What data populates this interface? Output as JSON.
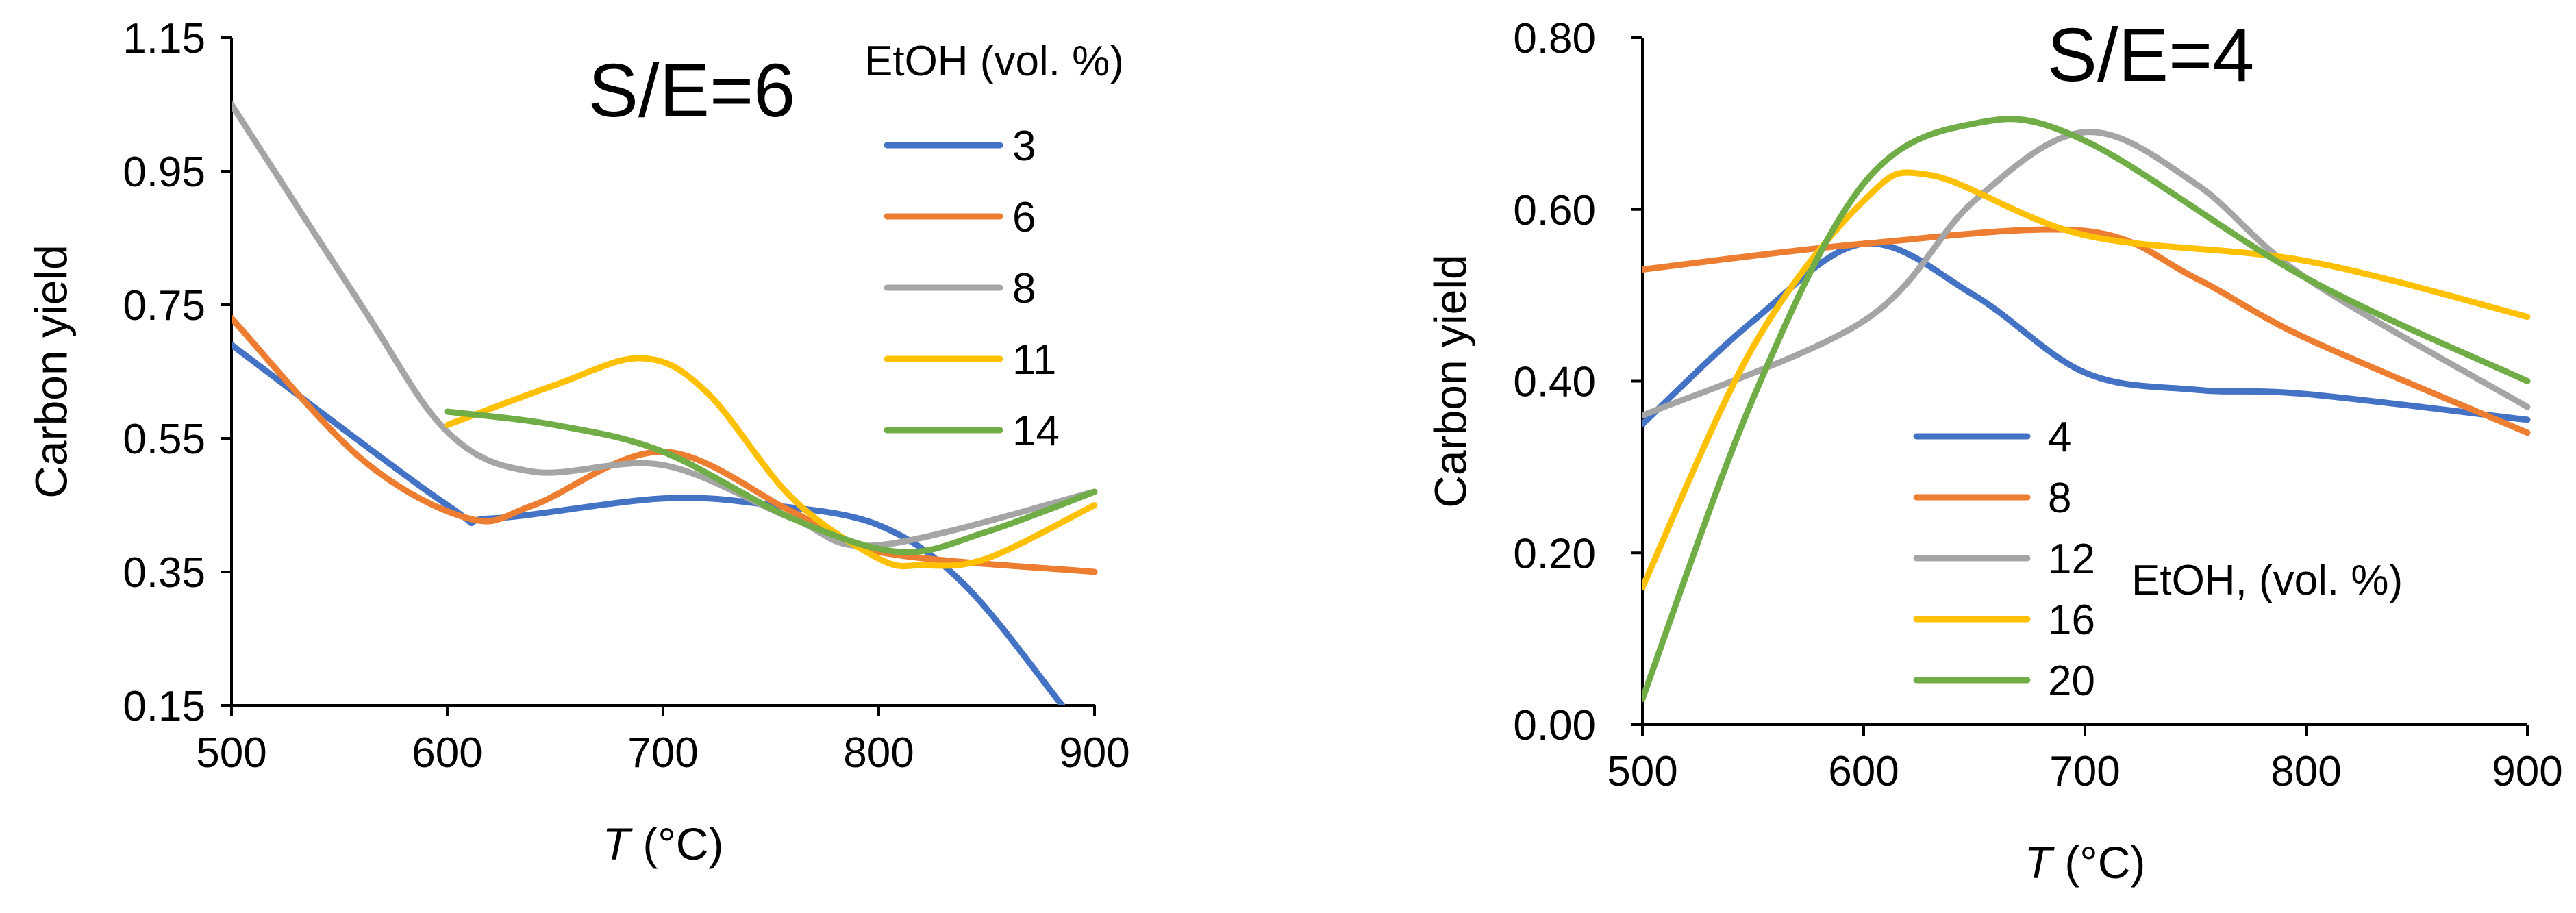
{
  "chart_data": [
    {
      "type": "line",
      "title": "S/E=6",
      "xlabel_italic": "T",
      "xlabel_rest": " (°C)",
      "ylabel": "Carbon yield",
      "xlim": [
        500,
        900
      ],
      "ylim": [
        0.15,
        1.15
      ],
      "xticks": [
        "500",
        "600",
        "700",
        "800",
        "900"
      ],
      "yticks": [
        "0.15",
        "0.35",
        "0.55",
        "0.75",
        "0.95",
        "1.15"
      ],
      "legend_title": "EtOH (vol. %)",
      "series": [
        {
          "name": "3",
          "color": "#4472C4",
          "x": [
            500,
            600,
            620,
            700,
            750,
            800,
            840,
            885
          ],
          "y": [
            0.69,
            0.45,
            0.43,
            0.46,
            0.45,
            0.42,
            0.33,
            0.15
          ]
        },
        {
          "name": "6",
          "color": "#ED7D31",
          "x": [
            500,
            560,
            610,
            640,
            700,
            760,
            800,
            900
          ],
          "y": [
            0.73,
            0.52,
            0.43,
            0.45,
            0.53,
            0.44,
            0.38,
            0.35
          ]
        },
        {
          "name": "8",
          "color": "#A5A5A5",
          "x": [
            500,
            560,
            600,
            640,
            700,
            760,
            800,
            900
          ],
          "y": [
            1.05,
            0.75,
            0.56,
            0.5,
            0.51,
            0.43,
            0.39,
            0.47
          ]
        },
        {
          "name": "11",
          "color": "#FFC000",
          "x": [
            600,
            650,
            690,
            720,
            760,
            800,
            820,
            850,
            900
          ],
          "y": [
            0.57,
            0.63,
            0.67,
            0.62,
            0.46,
            0.37,
            0.36,
            0.37,
            0.45
          ]
        },
        {
          "name": "14",
          "color": "#70AD47",
          "x": [
            600,
            650,
            700,
            760,
            810,
            850,
            900
          ],
          "y": [
            0.59,
            0.57,
            0.53,
            0.43,
            0.38,
            0.41,
            0.47
          ]
        }
      ]
    },
    {
      "type": "line",
      "title": "S/E=4",
      "xlabel_italic": "T",
      "xlabel_rest": " (°C)",
      "ylabel": "Carbon yield",
      "xlim": [
        500,
        900
      ],
      "ylim": [
        0.0,
        0.8
      ],
      "xticks": [
        "500",
        "600",
        "700",
        "800",
        "900"
      ],
      "yticks": [
        "0.00",
        "0.20",
        "0.40",
        "0.60",
        "0.80"
      ],
      "legend_title": "EtOH, (vol. %)",
      "series": [
        {
          "name": "4",
          "color": "#4472C4",
          "x": [
            500,
            550,
            600,
            650,
            700,
            750,
            800,
            900
          ],
          "y": [
            0.35,
            0.47,
            0.56,
            0.5,
            0.41,
            0.39,
            0.385,
            0.355
          ]
        },
        {
          "name": "8",
          "color": "#ED7D31",
          "x": [
            500,
            600,
            700,
            750,
            800,
            900
          ],
          "y": [
            0.53,
            0.56,
            0.575,
            0.52,
            0.45,
            0.34
          ]
        },
        {
          "name": "12",
          "color": "#A5A5A5",
          "x": [
            500,
            600,
            650,
            700,
            750,
            800,
            900
          ],
          "y": [
            0.36,
            0.47,
            0.61,
            0.69,
            0.63,
            0.52,
            0.37
          ]
        },
        {
          "name": "16",
          "color": "#FFC000",
          "x": [
            500,
            550,
            600,
            630,
            700,
            800,
            900
          ],
          "y": [
            0.16,
            0.44,
            0.61,
            0.64,
            0.57,
            0.54,
            0.475
          ]
        },
        {
          "name": "20",
          "color": "#70AD47",
          "x": [
            500,
            550,
            600,
            650,
            700,
            800,
            900
          ],
          "y": [
            0.03,
            0.38,
            0.63,
            0.7,
            0.68,
            0.52,
            0.4
          ]
        }
      ]
    }
  ]
}
